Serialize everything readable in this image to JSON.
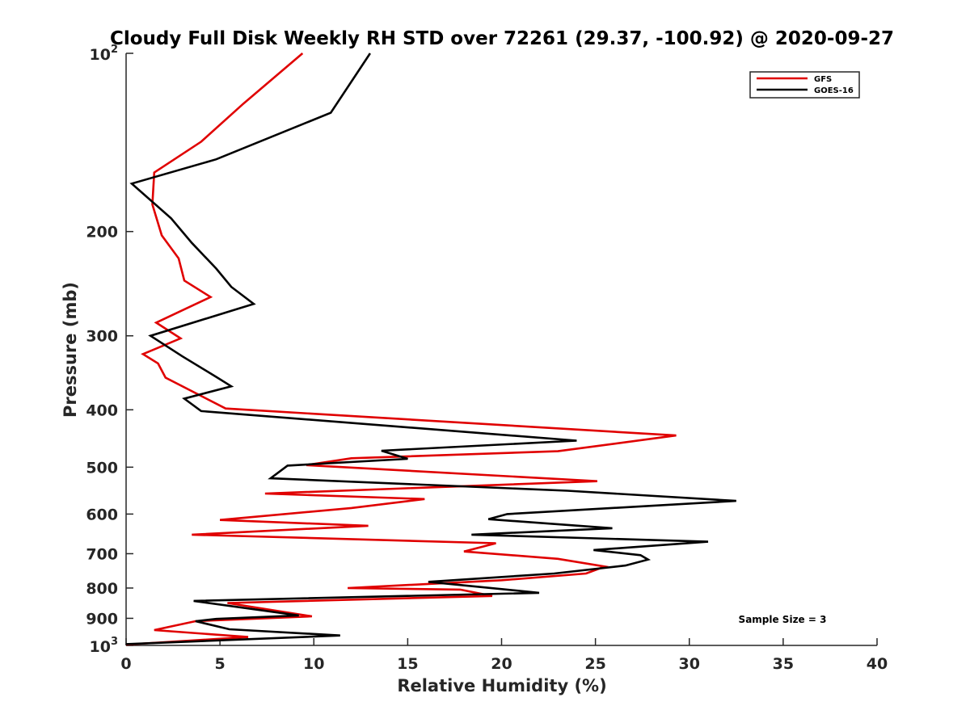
{
  "chart_data": {
    "type": "line",
    "title": "Cloudy Full Disk Weekly RH STD over 72261 (29.37, -100.92) @ 2020-09-27",
    "xlabel": "Relative Humidity (%)",
    "ylabel": "Pressure (mb)",
    "xlim": [
      0,
      40
    ],
    "ylim": [
      100,
      1000
    ],
    "y_scale": "log",
    "y_reversed": true,
    "x_ticks": [
      0,
      5,
      10,
      15,
      20,
      25,
      30,
      35,
      40
    ],
    "y_ticks": [
      200,
      300,
      400,
      500,
      600,
      700,
      800,
      900
    ],
    "y_end_ticks": [
      {
        "value": 100,
        "base": "10",
        "exp": "2"
      },
      {
        "value": 1000,
        "base": "10",
        "exp": "3"
      }
    ],
    "grid": false,
    "legend_position": "top-right",
    "annotation": "Sample Size = 3",
    "series": [
      {
        "name": "GFS",
        "color": "#e00000",
        "points": [
          [
            9.4,
            100
          ],
          [
            6.2,
            122
          ],
          [
            4.0,
            141
          ],
          [
            1.5,
            159
          ],
          [
            1.4,
            180
          ],
          [
            1.9,
            203
          ],
          [
            2.8,
            222
          ],
          [
            3.1,
            242
          ],
          [
            4.5,
            258
          ],
          [
            1.6,
            285
          ],
          [
            2.9,
            303
          ],
          [
            0.9,
            322
          ],
          [
            1.7,
            334
          ],
          [
            2.1,
            353
          ],
          [
            5.3,
            398
          ],
          [
            29.3,
            442
          ],
          [
            23.0,
            470
          ],
          [
            12.0,
            483
          ],
          [
            9.6,
            496
          ],
          [
            25.1,
            528
          ],
          [
            7.4,
            554
          ],
          [
            15.9,
            566
          ],
          [
            12.0,
            586
          ],
          [
            5.0,
            614
          ],
          [
            12.9,
            628
          ],
          [
            3.5,
            650
          ],
          [
            19.7,
            672
          ],
          [
            18.0,
            694
          ],
          [
            23.0,
            714
          ],
          [
            25.5,
            736
          ],
          [
            24.5,
            756
          ],
          [
            20.0,
            776
          ],
          [
            11.8,
            800
          ],
          [
            17.8,
            805
          ],
          [
            19.5,
            825
          ],
          [
            5.4,
            848
          ],
          [
            9.9,
            893
          ],
          [
            3.7,
            910
          ],
          [
            1.5,
            942
          ],
          [
            6.5,
            968
          ],
          [
            0.0,
            997
          ]
        ]
      },
      {
        "name": "GOES-16",
        "color": "#000000",
        "points": [
          [
            13.0,
            100
          ],
          [
            10.9,
            126
          ],
          [
            4.8,
            151
          ],
          [
            0.3,
            166
          ],
          [
            2.4,
            190
          ],
          [
            3.5,
            209
          ],
          [
            4.8,
            231
          ],
          [
            5.6,
            248
          ],
          [
            6.8,
            265
          ],
          [
            1.3,
            300
          ],
          [
            3.0,
            325
          ],
          [
            4.8,
            352
          ],
          [
            5.6,
            365
          ],
          [
            3.1,
            383
          ],
          [
            4.0,
            402
          ],
          [
            24.0,
            451
          ],
          [
            13.6,
            469
          ],
          [
            15.0,
            484
          ],
          [
            8.6,
            497
          ],
          [
            7.7,
            522
          ],
          [
            23.5,
            548
          ],
          [
            32.5,
            570
          ],
          [
            20.3,
            600
          ],
          [
            19.3,
            612
          ],
          [
            25.9,
            634
          ],
          [
            18.4,
            650
          ],
          [
            31.0,
            668
          ],
          [
            24.9,
            690
          ],
          [
            27.4,
            704
          ],
          [
            27.8,
            716
          ],
          [
            26.6,
            733
          ],
          [
            22.8,
            756
          ],
          [
            16.1,
            781
          ],
          [
            22.0,
            815
          ],
          [
            3.6,
            841
          ],
          [
            9.2,
            890
          ],
          [
            4.8,
            902
          ],
          [
            3.7,
            910
          ],
          [
            5.5,
            939
          ],
          [
            11.4,
            962
          ],
          [
            0.0,
            995
          ]
        ]
      }
    ]
  }
}
